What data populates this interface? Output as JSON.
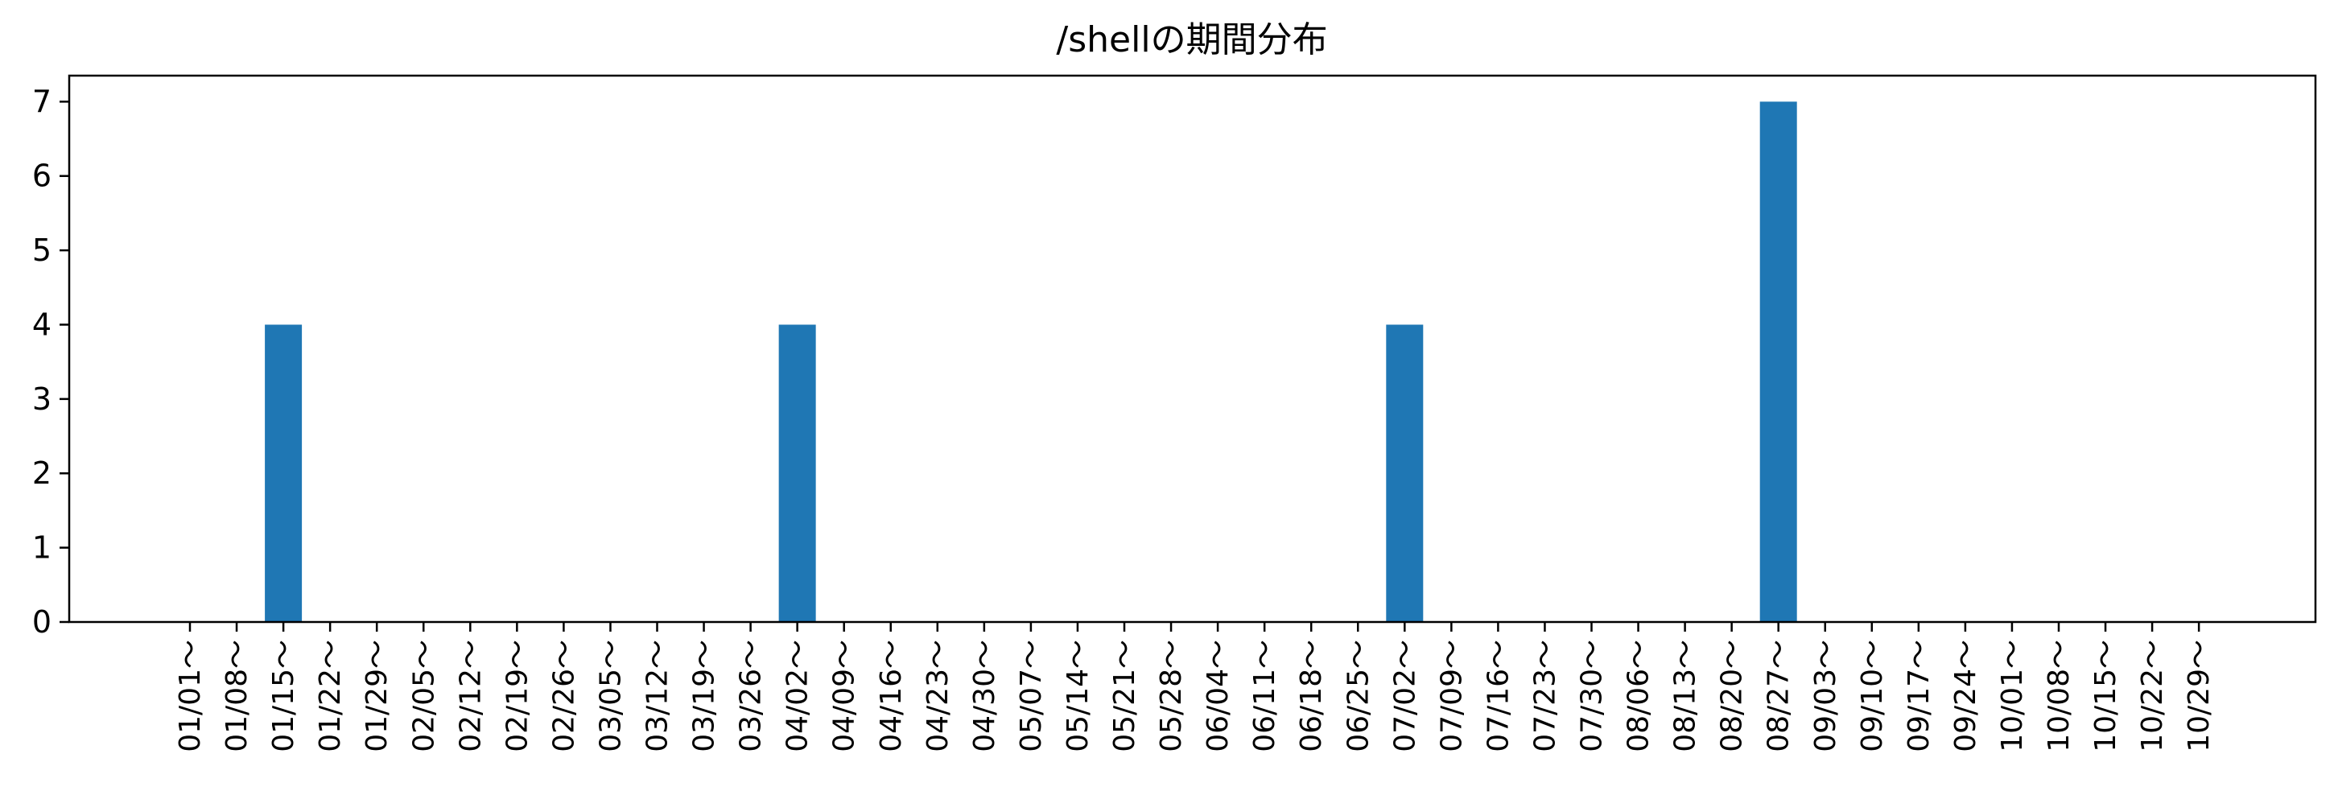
{
  "chart_data": {
    "type": "bar",
    "title": "/shellの期間分布",
    "xlabel": "",
    "ylabel": "",
    "categories": [
      "01/01～",
      "01/08～",
      "01/15～",
      "01/22～",
      "01/29～",
      "02/05～",
      "02/12～",
      "02/19～",
      "02/26～",
      "03/05～",
      "03/12～",
      "03/19～",
      "03/26～",
      "04/02～",
      "04/09～",
      "04/16～",
      "04/23～",
      "04/30～",
      "05/07～",
      "05/14～",
      "05/21～",
      "05/28～",
      "06/04～",
      "06/11～",
      "06/18～",
      "06/25～",
      "07/02～",
      "07/09～",
      "07/16～",
      "07/23～",
      "07/30～",
      "08/06～",
      "08/13～",
      "08/20～",
      "08/27～",
      "09/03～",
      "09/10～",
      "09/17～",
      "09/24～",
      "10/01～",
      "10/08～",
      "10/15～",
      "10/22～",
      "10/29～"
    ],
    "series": [
      {
        "values": [
          0,
          0,
          4,
          0,
          0,
          0,
          0,
          0,
          0,
          0,
          0,
          0,
          0,
          4,
          0,
          0,
          0,
          0,
          0,
          0,
          0,
          0,
          0,
          0,
          0,
          0,
          4,
          0,
          0,
          0,
          0,
          0,
          0,
          0,
          7,
          0,
          0,
          0,
          0,
          0,
          0,
          0,
          0,
          0
        ],
        "color": "#1f77b4"
      }
    ],
    "ylim": [
      0,
      7.35
    ],
    "yticks": [
      0,
      1,
      2,
      3,
      4,
      5,
      6,
      7
    ],
    "grid": false,
    "legend": "none"
  }
}
